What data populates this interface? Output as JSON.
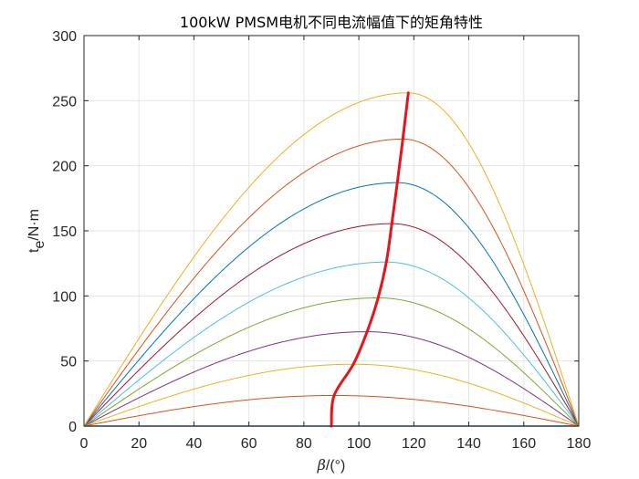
{
  "chart_data": {
    "type": "line",
    "title": "100kW PMSM电机不同电流幅值下的矩角特性",
    "xlabel": {
      "symbol": "β",
      "unit": "/(°)"
    },
    "ylabel": {
      "base": "t",
      "sub": "e",
      "unit": "/N·m"
    },
    "xlim": [
      0,
      180
    ],
    "ylim": [
      0,
      300
    ],
    "xticks": [
      "0",
      "20",
      "40",
      "60",
      "80",
      "100",
      "120",
      "140",
      "160",
      "180"
    ],
    "yticks": [
      "0",
      "50",
      "100",
      "150",
      "200",
      "250",
      "300"
    ],
    "grid": true,
    "legend": "none",
    "curve_model": "peak-anchored torque-angle curves, value 0 at 0° and 180°",
    "series": [
      {
        "color": "#0072BD",
        "peak_x": 90,
        "peak_y": 0
      },
      {
        "color": "#D95319",
        "peak_x": 91,
        "peak_y": 23.5
      },
      {
        "color": "#EDB120",
        "peak_x": 98,
        "peak_y": 47.5
      },
      {
        "color": "#7E2F8E",
        "peak_x": 103,
        "peak_y": 72.5
      },
      {
        "color": "#77AC30",
        "peak_x": 107,
        "peak_y": 98.5
      },
      {
        "color": "#4DBEEE",
        "peak_x": 110,
        "peak_y": 126
      },
      {
        "color": "#A2142F",
        "peak_x": 112,
        "peak_y": 155.5
      },
      {
        "color": "#0072BD",
        "peak_x": 114,
        "peak_y": 187
      },
      {
        "color": "#D95319",
        "peak_x": 116,
        "peak_y": 220.5
      },
      {
        "color": "#EDB120",
        "peak_x": 118,
        "peak_y": 256
      }
    ],
    "mtpa_line": {
      "color": "#E8141B",
      "x": [
        90,
        91,
        98,
        103,
        107,
        110,
        112,
        114,
        116,
        118
      ],
      "y": [
        0,
        23.5,
        47.5,
        72.5,
        98.5,
        126,
        155.5,
        187,
        220.5,
        256
      ]
    }
  }
}
